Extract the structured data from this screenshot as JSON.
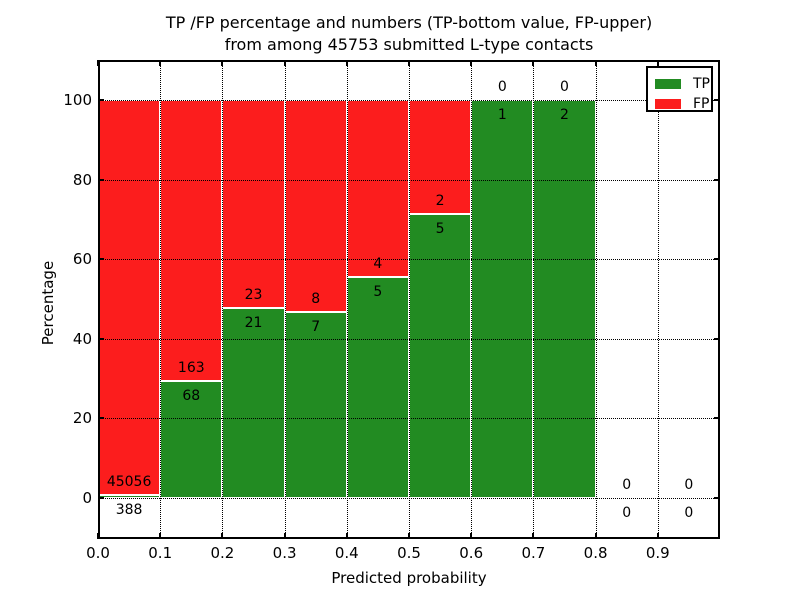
{
  "chart_data": {
    "type": "bar",
    "stacked": true,
    "title": "TP /FP percentage and numbers (TP-bottom value, FP-upper) from among 45753 submitted L-type contacts",
    "title_lines": [
      "TP /FP percentage and numbers (TP-bottom value, FP-upper)",
      "from among 45753 submitted L-type contacts"
    ],
    "xlabel": "Predicted probability",
    "ylabel": "Percentage",
    "xlim": [
      0.0,
      1.0
    ],
    "ylim": [
      -11,
      110
    ],
    "x_ticks": [
      0.0,
      0.1,
      0.2,
      0.3,
      0.4,
      0.5,
      0.6,
      0.7,
      0.8,
      0.9
    ],
    "x_tick_labels": [
      "0.0",
      "0.1",
      "0.2",
      "0.3",
      "0.4",
      "0.5",
      "0.6",
      "0.7",
      "0.8",
      "0.9"
    ],
    "y_ticks": [
      0,
      20,
      40,
      60,
      80,
      100
    ],
    "y_tick_labels": [
      "0",
      "20",
      "40",
      "60",
      "80",
      "100"
    ],
    "grid": true,
    "grid_style": "dotted",
    "total_submitted_contacts": 45753,
    "bin_width": 0.1,
    "colors": {
      "tp": "#228b22",
      "fp": "#fc1d1d",
      "bar_edge": "#ffffff"
    },
    "legend": {
      "position": "upper-right",
      "entries": [
        {
          "label": "TP",
          "color": "#228b22"
        },
        {
          "label": "FP",
          "color": "#fc1d1d"
        }
      ]
    },
    "bins": [
      {
        "x_start": 0.0,
        "x_end": 0.1,
        "tp": 388,
        "fp": 45056,
        "tp_pct": 0.85
      },
      {
        "x_start": 0.1,
        "x_end": 0.2,
        "tp": 68,
        "fp": 163,
        "tp_pct": 29.44
      },
      {
        "x_start": 0.2,
        "x_end": 0.3,
        "tp": 21,
        "fp": 23,
        "tp_pct": 47.73
      },
      {
        "x_start": 0.3,
        "x_end": 0.4,
        "tp": 7,
        "fp": 8,
        "tp_pct": 46.67
      },
      {
        "x_start": 0.4,
        "x_end": 0.5,
        "tp": 5,
        "fp": 4,
        "tp_pct": 55.56
      },
      {
        "x_start": 0.5,
        "x_end": 0.6,
        "tp": 5,
        "fp": 2,
        "tp_pct": 71.43
      },
      {
        "x_start": 0.6,
        "x_end": 0.7,
        "tp": 1,
        "fp": 0,
        "tp_pct": 100
      },
      {
        "x_start": 0.7,
        "x_end": 0.8,
        "tp": 2,
        "fp": 0,
        "tp_pct": 100
      },
      {
        "x_start": 0.8,
        "x_end": 0.9,
        "tp": 0,
        "fp": 0,
        "tp_pct": 0
      },
      {
        "x_start": 0.9,
        "x_end": 1.0,
        "tp": 0,
        "fp": 0,
        "tp_pct": 0
      }
    ]
  }
}
